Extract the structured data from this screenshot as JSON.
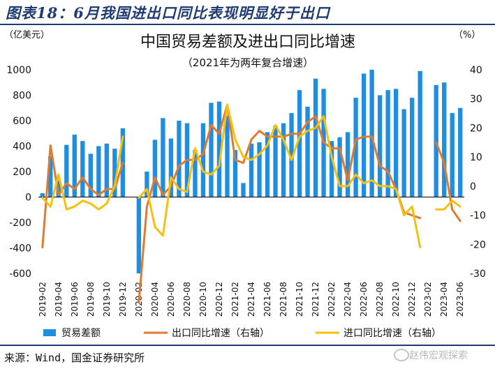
{
  "figure_title": "图表18：6月我国进出口同比表现明显好于出口",
  "source": "来源：Wind，国金证券研究所",
  "watermark": "赵伟宏观探索",
  "colors": {
    "bar": "#1f8ee0",
    "export": "#e07a30",
    "import": "#f5c010",
    "frame": "#1f3b73"
  },
  "chart_data": {
    "type": "bar+line",
    "title": "中国贸易差额及进出口同比增速",
    "subtitle": "（2021年为两年复合增速）",
    "left_unit": "（亿美元）",
    "right_unit": "（%）",
    "left_ylim": [
      -600,
      1000
    ],
    "right_ylim": [
      -30,
      40
    ],
    "left_ticks": [
      "1000",
      "800",
      "600",
      "400",
      "200",
      "0",
      "-200",
      "-400",
      "-600"
    ],
    "right_ticks": [
      "40",
      "30",
      "20",
      "10",
      "0",
      "-10",
      "-20",
      "-30"
    ],
    "x_tick_labels": [
      "2019-02",
      "2019-04",
      "2019-06",
      "2019-08",
      "2019-10",
      "2019-12",
      "2020-02",
      "2020-04",
      "2020-06",
      "2020-08",
      "2020-10",
      "2020-12",
      "2021-02",
      "2021-04",
      "2021-06",
      "2021-08",
      "2021-10",
      "2021-12",
      "2022-02",
      "2022-04",
      "2022-06",
      "2022-08",
      "2022-10",
      "2022-12",
      "2023-02",
      "2023-04",
      "2023-06"
    ],
    "months": [
      "2019-02",
      "2019-03",
      "2019-04",
      "2019-05",
      "2019-06",
      "2019-07",
      "2019-08",
      "2019-09",
      "2019-10",
      "2019-11",
      "2019-12",
      "2020-01",
      "2020-02",
      "2020-03",
      "2020-04",
      "2020-05",
      "2020-06",
      "2020-07",
      "2020-08",
      "2020-09",
      "2020-10",
      "2020-11",
      "2020-12",
      "2021-01",
      "2021-02",
      "2021-03",
      "2021-04",
      "2021-05",
      "2021-06",
      "2021-07",
      "2021-08",
      "2021-09",
      "2021-10",
      "2021-11",
      "2021-12",
      "2022-01",
      "2022-02",
      "2022-03",
      "2022-04",
      "2022-05",
      "2022-06",
      "2022-07",
      "2022-08",
      "2022-09",
      "2022-10",
      "2022-11",
      "2022-12",
      "2023-01",
      "2023-02",
      "2023-03",
      "2023-04",
      "2023-05",
      "2023-06"
    ],
    "series": [
      {
        "name": "贸易差额",
        "type": "bar",
        "axis": "left",
        "values": [
          30,
          320,
          130,
          410,
          490,
          440,
          340,
          400,
          420,
          380,
          540,
          null,
          -600,
          200,
          450,
          620,
          460,
          600,
          580,
          370,
          580,
          740,
          750,
          640,
          370,
          110,
          420,
          430,
          510,
          560,
          580,
          660,
          840,
          710,
          930,
          850,
          440,
          470,
          510,
          780,
          970,
          1000,
          800,
          840,
          850,
          690,
          780,
          990,
          null,
          880,
          900,
          660,
          700
        ]
      },
      {
        "name": "出口同比增速（右轴）",
        "type": "line",
        "axis": "right",
        "values": [
          -21,
          14,
          -3,
          1,
          -1,
          3,
          -1,
          -3,
          -1,
          -1,
          8,
          null,
          -40,
          -7,
          3,
          -3,
          0,
          7,
          9,
          9,
          11,
          21,
          18,
          28,
          9,
          8,
          16,
          19,
          17,
          17,
          17,
          18,
          18,
          22,
          24,
          15,
          13,
          13,
          2,
          16,
          17,
          17,
          7,
          5,
          -1,
          -9,
          -10,
          -11,
          null,
          15,
          8,
          -8,
          -12
        ]
      },
      {
        "name": "进口同比增速（右轴）",
        "type": "line",
        "axis": "right",
        "values": [
          -4,
          -7,
          4,
          -8,
          -7,
          -5,
          -6,
          -8,
          -6,
          0,
          17,
          null,
          -4,
          -1,
          -14,
          -17,
          3,
          -1,
          -2,
          13,
          5,
          4,
          7,
          28,
          16,
          10,
          9,
          11,
          14,
          21,
          16,
          9,
          17,
          19,
          20,
          24,
          10,
          0,
          0,
          4,
          1,
          2,
          0,
          0,
          -1,
          -10,
          -7,
          -21,
          null,
          -8,
          -8,
          -5,
          -7
        ]
      }
    ]
  }
}
